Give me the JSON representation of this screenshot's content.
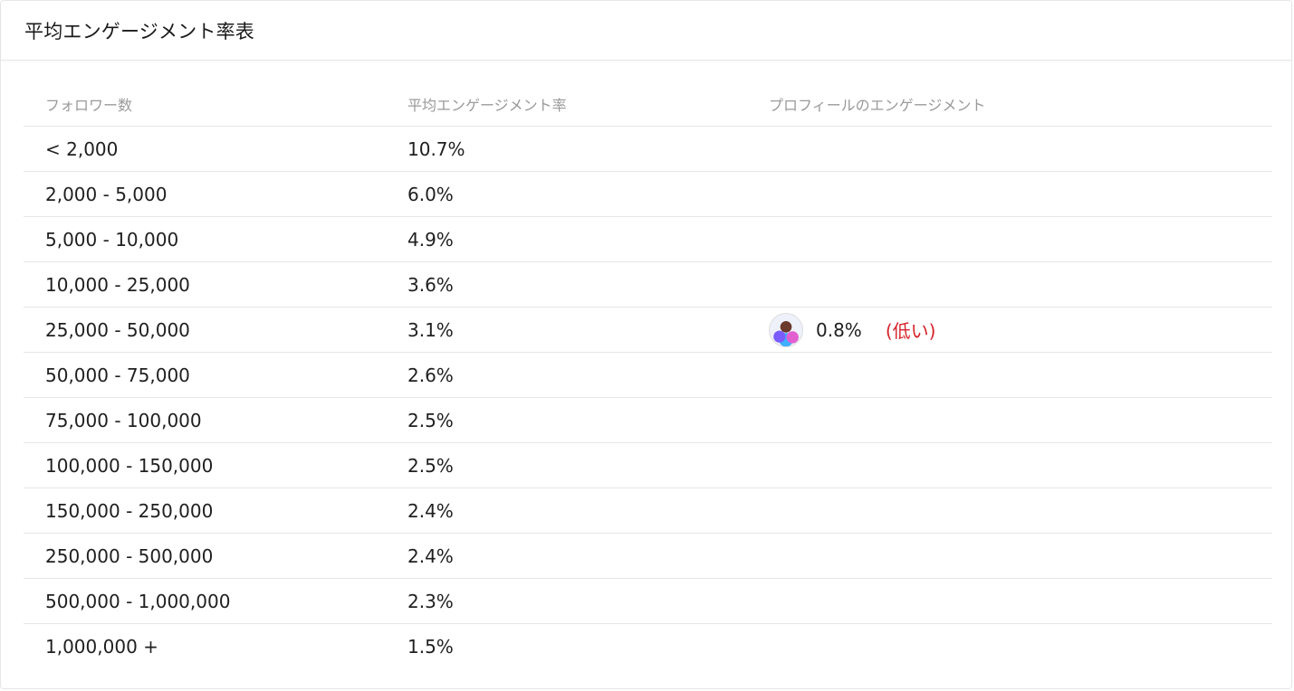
{
  "card": {
    "title": "平均エンゲージメント率表"
  },
  "table": {
    "headers": {
      "followers": "フォロワー数",
      "avg_rate": "平均エンゲージメント率",
      "profile_rate": "プロフィールのエンゲージメント"
    },
    "rows": [
      {
        "followers": "< 2,000",
        "avg_rate": "10.7%"
      },
      {
        "followers": "2,000 - 5,000",
        "avg_rate": "6.0%"
      },
      {
        "followers": "5,000 - 10,000",
        "avg_rate": "4.9%"
      },
      {
        "followers": "10,000 - 25,000",
        "avg_rate": "3.6%"
      },
      {
        "followers": "25,000 - 50,000",
        "avg_rate": "3.1%"
      },
      {
        "followers": "50,000 - 75,000",
        "avg_rate": "2.6%"
      },
      {
        "followers": "75,000 - 100,000",
        "avg_rate": "2.5%"
      },
      {
        "followers": "100,000 - 150,000",
        "avg_rate": "2.5%"
      },
      {
        "followers": "150,000 - 250,000",
        "avg_rate": "2.4%"
      },
      {
        "followers": "250,000 - 500,000",
        "avg_rate": "2.4%"
      },
      {
        "followers": "500,000 - 1,000,000",
        "avg_rate": "2.3%"
      },
      {
        "followers": "1,000,000 +",
        "avg_rate": "1.5%"
      }
    ],
    "profile": {
      "row_index": 4,
      "value": "0.8%",
      "status": "(低い)",
      "status_color": "#d6232a",
      "avatar_icon": "profile-avatar-icon"
    }
  }
}
